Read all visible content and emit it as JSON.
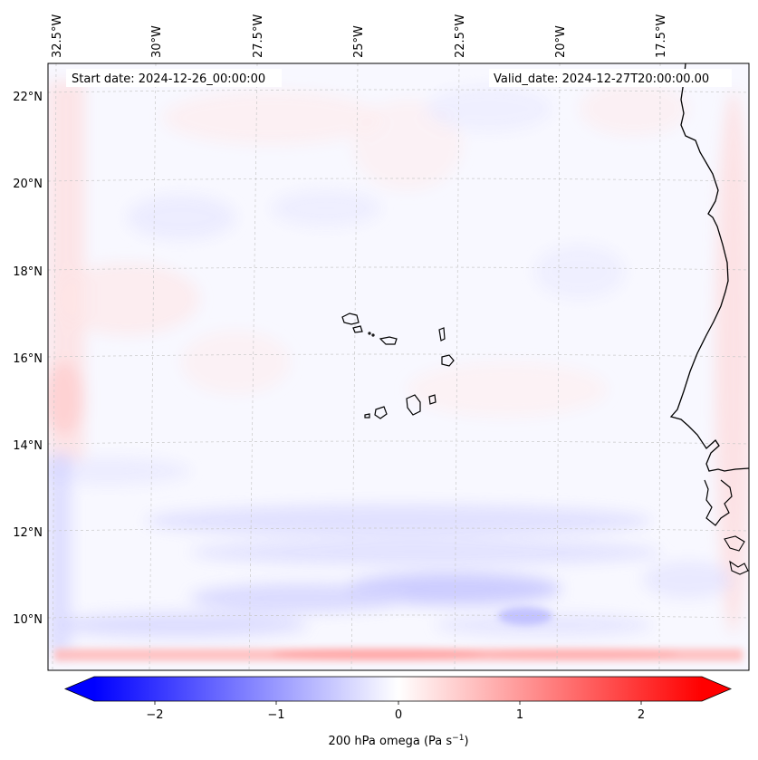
{
  "header": {
    "start_date": "Start date: 2024-12-26_00:00:00",
    "valid_date": "Valid_date: 2024-12-27T20:00:00.00"
  },
  "lon_labels": [
    "32.5°W",
    "30°W",
    "27.5°W",
    "25°W",
    "22.5°W",
    "20°W",
    "17.5°W"
  ],
  "lat_labels": [
    "22°N",
    "20°N",
    "18°N",
    "16°N",
    "14°N",
    "12°N",
    "10°N"
  ],
  "colorbar": {
    "label": "200 hPa omega (Pa s",
    "label_sup": "−1",
    "label_close": ")",
    "ticks": [
      "−2",
      "−1",
      "0",
      "1",
      "2"
    ],
    "min_color": "#0000ff",
    "mid_color": "#ffffff",
    "max_color": "#ff0000"
  },
  "colors": {
    "field_base": "#f8f8ff",
    "coastline": "#000000",
    "gridline": "#c8c8c8"
  }
}
